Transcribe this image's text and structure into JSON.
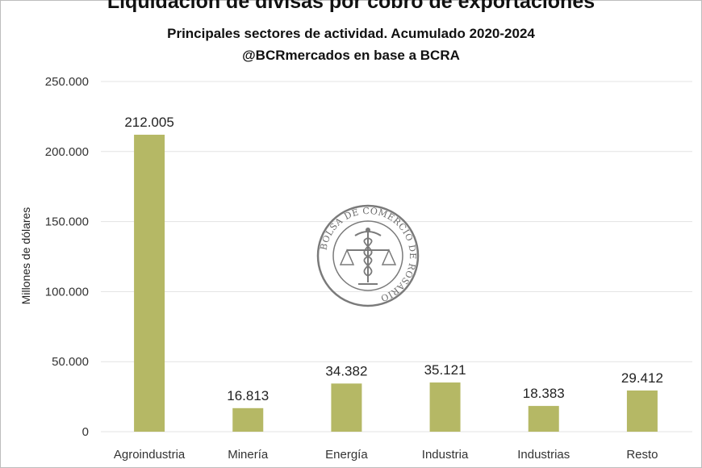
{
  "colors": {
    "bar": "#b5b865",
    "grid": "#e3e3e3",
    "seal": "#7a7a7a"
  },
  "header": {
    "title": "Liquidación de divisas por cobro de exportaciones",
    "subtitle": "Principales sectores de actividad. Acumulado 2020-2024",
    "source": "@BCRmercados en base a BCRA"
  },
  "watermark": {
    "icon": "bcr-seal-icon",
    "text": "BOLSA DE COMERCIO DE ROSARIO"
  },
  "chart_data": {
    "type": "bar",
    "title": "Liquidación de divisas por cobro de exportaciones",
    "ylabel": "Millones de dólares",
    "xlabel": "",
    "categories": [
      "Agroindustria",
      "Minería",
      "Energía",
      "Industria",
      "Industrias",
      "Resto"
    ],
    "values": [
      212005,
      16813,
      34382,
      35121,
      18383,
      29412
    ],
    "value_labels": [
      "212.005",
      "16.813",
      "34.382",
      "35.121",
      "18.383",
      "29.412"
    ],
    "ylim": [
      0,
      250000
    ],
    "yticks": [
      0,
      50000,
      100000,
      150000,
      200000,
      250000
    ],
    "ytick_labels": [
      "0",
      "50.000",
      "100.000",
      "150.000",
      "200.000",
      "250.000"
    ],
    "grid": true,
    "legend": "none"
  }
}
